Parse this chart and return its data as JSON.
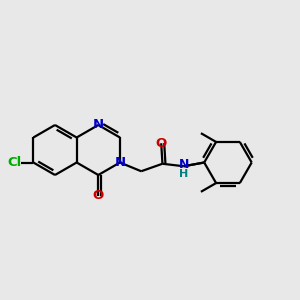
{
  "background_color": "#e8e8e8",
  "bond_color": "#000000",
  "N_color": "#0000cc",
  "O_color": "#cc0000",
  "Cl_color": "#00aa00",
  "NH_color": "#008080",
  "line_width": 1.6,
  "font_size": 9.5,
  "fig_w": 3.0,
  "fig_h": 3.0,
  "dpi": 100,
  "xlim": [
    0,
    12
  ],
  "ylim": [
    2,
    9
  ]
}
